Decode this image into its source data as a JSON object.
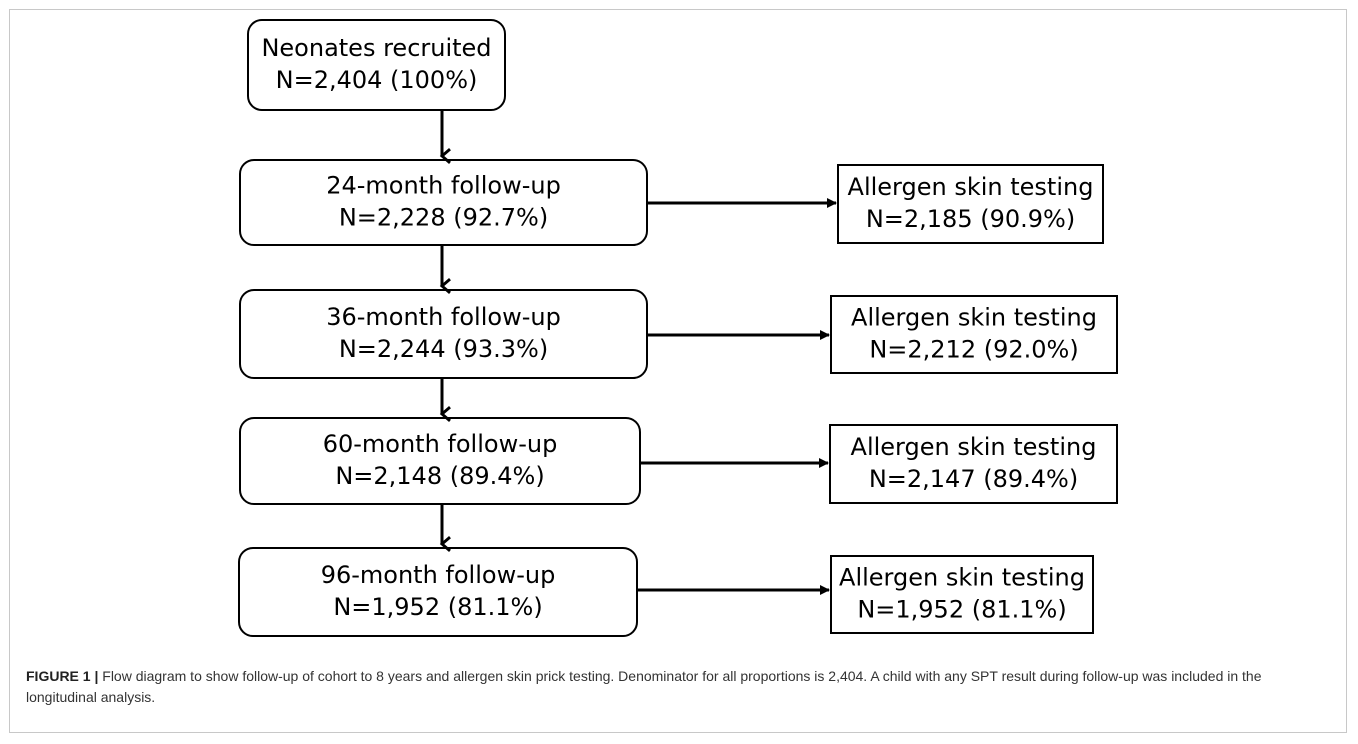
{
  "nodes": [
    {
      "lines": [
        "Neonates recruited",
        "N=2,404 (100%)"
      ]
    },
    {
      "lines": [
        "24-month follow-up",
        "N=2,228 (92.7%)"
      ]
    },
    {
      "lines": [
        "36-month follow-up",
        "N=2,244 (93.3%)"
      ]
    },
    {
      "lines": [
        "60-month follow-up",
        "N=2,148 (89.4%)"
      ]
    },
    {
      "lines": [
        "96-month follow-up",
        "N=1,952 (81.1%)"
      ]
    },
    {
      "lines": [
        "Allergen skin testing",
        "N=2,185 (90.9%)"
      ]
    },
    {
      "lines": [
        "Allergen skin testing",
        "N=2,212 (92.0%)"
      ]
    },
    {
      "lines": [
        "Allergen skin testing",
        "N=2,147 (89.4%)"
      ]
    },
    {
      "lines": [
        "Allergen skin testing",
        "N=1,952 (81.1%)"
      ]
    }
  ],
  "caption": {
    "label": "FIGURE 1 |",
    "text": "Flow diagram to show follow-up of cohort to 8 years and allergen skin prick testing. Denominator for all proportions is 2,404. A child with any SPT result during follow-up was included in the longitudinal analysis."
  }
}
